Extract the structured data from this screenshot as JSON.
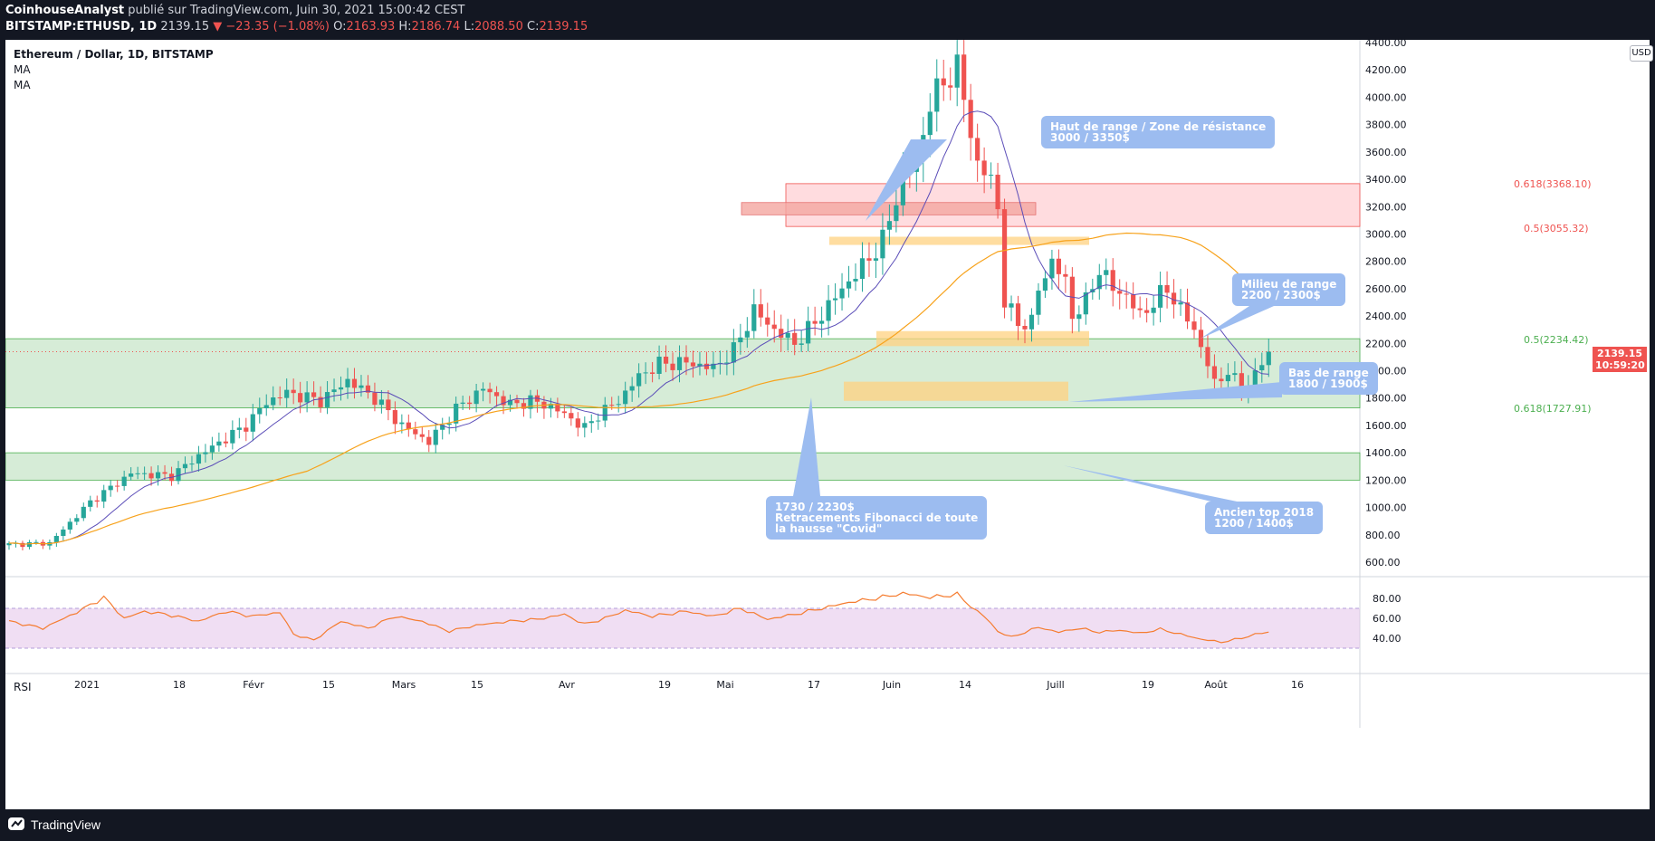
{
  "header": {
    "author": "CoinhouseAnalyst",
    "published_text": "publié sur TradingView.com, Juin 30, 2021 15:00:42 CEST",
    "symbol": "BITSTAMP:ETHUSD, 1D",
    "last_price": "2139.15",
    "change": "▼ −23.35 (−1.08%)",
    "open_label": "O:",
    "open": "2163.93",
    "high_label": "H:",
    "high": "2186.74",
    "low_label": "L:",
    "low": "2088.50",
    "close_label": "C:",
    "close": "2139.15"
  },
  "legend": {
    "title": "Ethereum / Dollar, 1D, BITSTAMP",
    "indicator1": "MA",
    "indicator2": "MA"
  },
  "rsi_label": "RSI",
  "currency_button": "USD",
  "price_tag": {
    "price": "2139.15",
    "countdown": "10:59:20"
  },
  "fib_labels": {
    "f618_top": "0.618(3368.10)",
    "f5_top": "0.5(3055.32)",
    "f5_bottom": "0.5(2234.42)",
    "f618_bottom": "0.618(1727.91)"
  },
  "annotations": {
    "resistance": {
      "line1": "Haut de range / Zone de résistance",
      "line2": "3000 / 3350$"
    },
    "mid_range": {
      "line1": "Milieu de range",
      "line2": "2200 / 2300$"
    },
    "low_range": {
      "line1": "Bas de range",
      "line2": "1800 / 1900$"
    },
    "fib": {
      "line1": "1730 / 2230$",
      "line2": "Retracements Fibonacci de toute",
      "line3": "la hausse \"Covid\""
    },
    "old_top": {
      "line1": "Ancien top 2018",
      "line2": "1200 / 1400$"
    }
  },
  "footer": {
    "brand": "TradingView"
  },
  "colors": {
    "up": "#26a69a",
    "down": "#ef5350",
    "ma_fast": "#5b4db8",
    "ma_slow": "#f7a21b",
    "rsi_line": "#f57c30",
    "green_zone": "#c8e6c9",
    "red_zone": "#ffcdd2",
    "orange_zone": "#ffd180",
    "note_bg": "#9cbcf0"
  },
  "chart_data": {
    "type": "candlestick",
    "ylim": [
      520,
      4400
    ],
    "y_ticks": [
      "4400.00",
      "4200.00",
      "4000.00",
      "3800.00",
      "3600.00",
      "3400.00",
      "3200.00",
      "3000.00",
      "2800.00",
      "2600.00",
      "2400.00",
      "2200.00",
      "2000.00",
      "1800.00",
      "1600.00",
      "1400.00",
      "1200.00",
      "1000.00",
      "800.00",
      "600.00"
    ],
    "x_ticks": [
      "2021",
      "18",
      "Févr",
      "15",
      "Mars",
      "15",
      "Avr",
      "19",
      "Mai",
      "17",
      "Juin",
      "14",
      "Juill",
      "19",
      "Août",
      "16"
    ],
    "rsi_ticks": [
      "80.00",
      "60.00",
      "40.00"
    ],
    "close_anchors": [
      [
        0,
        730
      ],
      [
        6,
        740
      ],
      [
        12,
        1040
      ],
      [
        18,
        1250
      ],
      [
        24,
        1230
      ],
      [
        28,
        1380
      ],
      [
        35,
        1600
      ],
      [
        38,
        1770
      ],
      [
        41,
        1840
      ],
      [
        46,
        1780
      ],
      [
        50,
        1930
      ],
      [
        54,
        1800
      ],
      [
        58,
        1600
      ],
      [
        62,
        1480
      ],
      [
        66,
        1720
      ],
      [
        70,
        1870
      ],
      [
        74,
        1750
      ],
      [
        77,
        1780
      ],
      [
        80,
        1740
      ],
      [
        83,
        1650
      ],
      [
        85,
        1580
      ],
      [
        87,
        1680
      ],
      [
        90,
        1780
      ],
      [
        93,
        1960
      ],
      [
        96,
        2050
      ],
      [
        100,
        2060
      ],
      [
        104,
        2020
      ],
      [
        107,
        2150
      ],
      [
        110,
        2440
      ],
      [
        113,
        2300
      ],
      [
        116,
        2200
      ],
      [
        119,
        2350
      ],
      [
        123,
        2600
      ],
      [
        126,
        2760
      ],
      [
        129,
        2950
      ],
      [
        132,
        3420
      ],
      [
        134,
        3520
      ],
      [
        136,
        3950
      ],
      [
        138,
        4120
      ],
      [
        140,
        4200
      ],
      [
        141,
        4000
      ],
      [
        143,
        3500
      ],
      [
        145,
        3400
      ],
      [
        146,
        3200
      ],
      [
        147,
        2500
      ],
      [
        149,
        2350
      ],
      [
        151,
        2350
      ],
      [
        152,
        2600
      ],
      [
        154,
        2800
      ],
      [
        156,
        2650
      ],
      [
        157,
        2400
      ],
      [
        159,
        2500
      ],
      [
        161,
        2750
      ],
      [
        163,
        2600
      ],
      [
        165,
        2550
      ],
      [
        167,
        2400
      ],
      [
        169,
        2500
      ],
      [
        171,
        2600
      ],
      [
        173,
        2450
      ],
      [
        175,
        2300
      ],
      [
        177,
        2050
      ],
      [
        178,
        1900
      ],
      [
        180,
        2000
      ],
      [
        182,
        1850
      ],
      [
        184,
        1970
      ],
      [
        186,
        2139
      ]
    ],
    "rsi_anchors": [
      [
        0,
        57
      ],
      [
        5,
        50
      ],
      [
        10,
        66
      ],
      [
        14,
        81
      ],
      [
        17,
        60
      ],
      [
        20,
        67
      ],
      [
        24,
        63
      ],
      [
        28,
        57
      ],
      [
        32,
        67
      ],
      [
        36,
        62
      ],
      [
        40,
        66
      ],
      [
        42,
        44
      ],
      [
        45,
        38
      ],
      [
        49,
        57
      ],
      [
        53,
        50
      ],
      [
        57,
        62
      ],
      [
        61,
        57
      ],
      [
        65,
        47
      ],
      [
        69,
        53
      ],
      [
        74,
        57
      ],
      [
        78,
        59
      ],
      [
        82,
        64
      ],
      [
        85,
        54
      ],
      [
        88,
        60
      ],
      [
        91,
        68
      ],
      [
        95,
        62
      ],
      [
        100,
        67
      ],
      [
        104,
        62
      ],
      [
        108,
        70
      ],
      [
        112,
        59
      ],
      [
        116,
        64
      ],
      [
        120,
        70
      ],
      [
        124,
        76
      ],
      [
        128,
        80
      ],
      [
        132,
        85
      ],
      [
        136,
        81
      ],
      [
        140,
        84
      ],
      [
        142,
        72
      ],
      [
        144,
        62
      ],
      [
        146,
        47
      ],
      [
        148,
        41
      ],
      [
        150,
        46
      ],
      [
        152,
        51
      ],
      [
        155,
        46
      ],
      [
        158,
        50
      ],
      [
        161,
        46
      ],
      [
        164,
        48
      ],
      [
        167,
        45
      ],
      [
        170,
        49
      ],
      [
        173,
        44
      ],
      [
        176,
        39
      ],
      [
        179,
        36
      ],
      [
        182,
        40
      ],
      [
        184,
        44
      ],
      [
        186,
        46
      ]
    ],
    "series": [
      {
        "name": "ETHUSD",
        "type": "candles"
      },
      {
        "name": "MA",
        "type": "line",
        "period": 10
      },
      {
        "name": "MA",
        "type": "line",
        "period": 45
      }
    ],
    "zones": [
      {
        "kind": "green",
        "from": 1728,
        "to": 2234
      },
      {
        "kind": "green",
        "from": 1200,
        "to": 1400
      },
      {
        "kind": "red",
        "from": 3055,
        "to": 3368
      },
      {
        "kind": "red-box",
        "from": 3140,
        "to": 3230
      },
      {
        "kind": "orange",
        "from": 2920,
        "to": 2980
      },
      {
        "kind": "orange",
        "from": 2180,
        "to": 2290
      },
      {
        "kind": "orange",
        "from": 1780,
        "to": 1920
      }
    ],
    "current_price": 2139.15
  }
}
